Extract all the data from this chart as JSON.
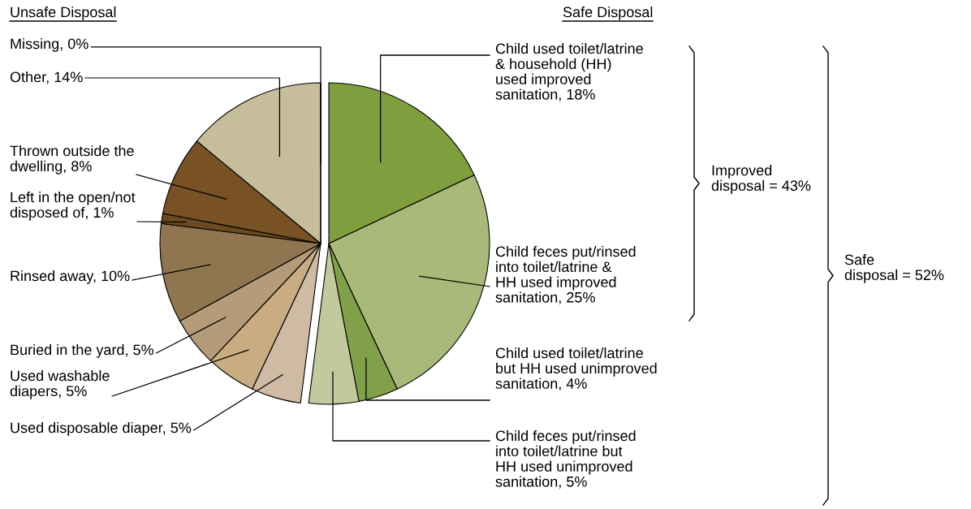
{
  "chart_data": {
    "type": "pie",
    "categories": [
      "Child used toilet/latrine\n& household (HH)\nused improved\nsanitation, 18%",
      "Child feces put/rinsed\ninto toilet/latrine &\nHH used improved\nsanitation, 25%",
      "Child used toilet/latrine\nbut HH used unimproved\nsanitation, 4%",
      "Child feces put/rinsed\ninto toilet/latrine but\nHH used unimproved\nsanitation, 5%",
      "Used disposable diaper, 5%",
      "Used washable\ndiapers, 5%",
      "Buried in the yard, 5%",
      "Rinsed away, 10%",
      "Left in the open/not\ndisposed of, 1%",
      "Thrown outside the\ndwelling, 8%",
      "Other, 14%",
      "Missing, 0%"
    ],
    "values": [
      18,
      25,
      4,
      5,
      5,
      5,
      5,
      10,
      1,
      8,
      14,
      0
    ],
    "colors": [
      "#7f9f3e",
      "#a9b97a",
      "#80a04a",
      "#c2c99c",
      "#cfbba3",
      "#c9ac82",
      "#b59b79",
      "#8f7550",
      "#6a4a1f",
      "#785225",
      "#c6bd9b",
      "#c6bd9b"
    ],
    "annotations": [
      "Unsafe Disposal",
      "Safe Disposal",
      "Improved\ndisposal = 43%",
      "Safe\ndisposal = 52%"
    ]
  }
}
